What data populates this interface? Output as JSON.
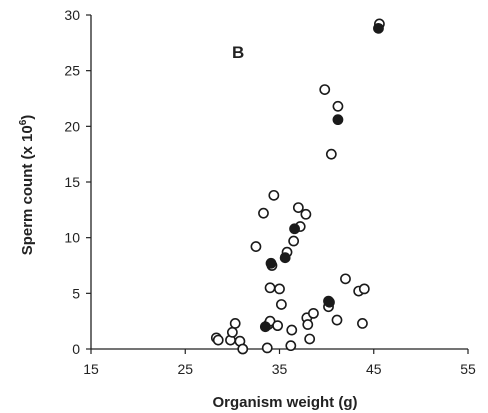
{
  "chart_data": {
    "type": "scatter",
    "panel_label": "B",
    "xlabel": "Organism weight (g)",
    "ylabel": "Sperm count (x 10",
    "ylabel_sup": "6",
    "ylabel_end": ")",
    "xlim": [
      15,
      55
    ],
    "ylim": [
      0,
      30
    ],
    "xticks": [
      15,
      25,
      35,
      45,
      55
    ],
    "yticks": [
      0,
      5,
      10,
      15,
      20,
      25,
      30
    ],
    "grid": false,
    "legend": "none",
    "series": [
      {
        "marker": "open circle",
        "points": [
          [
            28.3,
            1.0
          ],
          [
            28.5,
            0.8
          ],
          [
            29.8,
            0.8
          ],
          [
            30.0,
            1.5
          ],
          [
            30.3,
            2.3
          ],
          [
            30.8,
            0.7
          ],
          [
            31.1,
            0.0
          ],
          [
            32.5,
            9.2
          ],
          [
            33.3,
            12.2
          ],
          [
            33.7,
            0.1
          ],
          [
            33.8,
            2.2
          ],
          [
            34.0,
            2.5
          ],
          [
            34.0,
            5.5
          ],
          [
            34.2,
            7.5
          ],
          [
            34.4,
            13.8
          ],
          [
            34.8,
            2.1
          ],
          [
            35.0,
            5.4
          ],
          [
            35.2,
            4.0
          ],
          [
            35.8,
            8.7
          ],
          [
            36.2,
            0.3
          ],
          [
            36.3,
            1.7
          ],
          [
            36.5,
            9.7
          ],
          [
            37.0,
            12.7
          ],
          [
            37.2,
            11.0
          ],
          [
            37.8,
            12.1
          ],
          [
            37.9,
            2.8
          ],
          [
            38.0,
            2.2
          ],
          [
            38.2,
            0.9
          ],
          [
            38.6,
            3.2
          ],
          [
            39.8,
            23.3
          ],
          [
            40.2,
            3.8
          ],
          [
            40.2,
            4.3
          ],
          [
            40.5,
            17.5
          ],
          [
            41.1,
            2.6
          ],
          [
            41.2,
            21.8
          ],
          [
            42.0,
            6.3
          ],
          [
            43.4,
            5.2
          ],
          [
            43.8,
            2.3
          ],
          [
            44.0,
            5.4
          ],
          [
            45.6,
            29.2
          ]
        ]
      },
      {
        "marker": "filled circle",
        "points": [
          [
            33.5,
            2.0
          ],
          [
            34.1,
            7.7
          ],
          [
            35.6,
            8.2
          ],
          [
            36.6,
            10.8
          ],
          [
            40.3,
            4.2
          ],
          [
            41.2,
            20.6
          ],
          [
            45.5,
            28.8
          ]
        ]
      }
    ]
  }
}
